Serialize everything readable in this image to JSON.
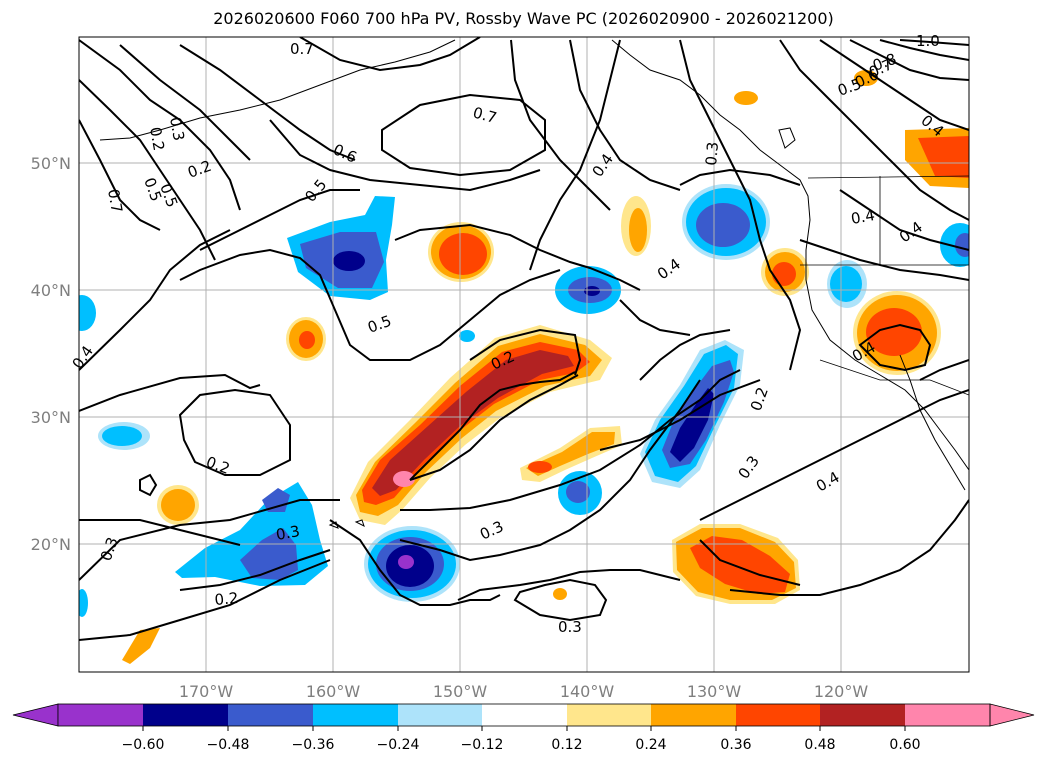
{
  "title": "2026020600 F060 700 hPa PV, Rossby Wave PC (2026020900 - 2026021200)",
  "map": {
    "lat_labels": [
      "50°N",
      "40°N",
      "30°N",
      "20°N"
    ],
    "lon_labels": [
      "170°W",
      "160°W",
      "150°W",
      "140°W",
      "130°W",
      "120°W"
    ],
    "contour_labels": [
      "0.7",
      "0.7",
      "0.6",
      "0.5",
      "0.5",
      "0.4",
      "0.4",
      "0.3",
      "0.2",
      "0.2",
      "0.2",
      "0.3",
      "0.3",
      "0.3",
      "0.2",
      "0.3",
      "0.4",
      "0.4",
      "0.4",
      "0.3",
      "0.2",
      "0.4",
      "0.4",
      "0.3",
      "0.4",
      "0.5",
      "0.6",
      "0.7",
      "0.8",
      "1.0",
      "0.2",
      "0.7",
      "0.5",
      "0.5"
    ]
  },
  "colorbar": {
    "tick_labels": [
      "−0.60",
      "−0.48",
      "−0.36",
      "−0.24",
      "−0.12",
      "0.12",
      "0.24",
      "0.36",
      "0.48",
      "0.60"
    ],
    "colors": {
      "under": "#9932cc",
      "b1": "#00008b",
      "b2": "#3a5bcd",
      "b3": "#00bfff",
      "b4": "#ade3fa",
      "b5": "#ffffff",
      "b6": "#ffe68c",
      "b7": "#ffa500",
      "b8": "#ff4500",
      "b9": "#b22222",
      "over": "#ff85ac"
    }
  }
}
